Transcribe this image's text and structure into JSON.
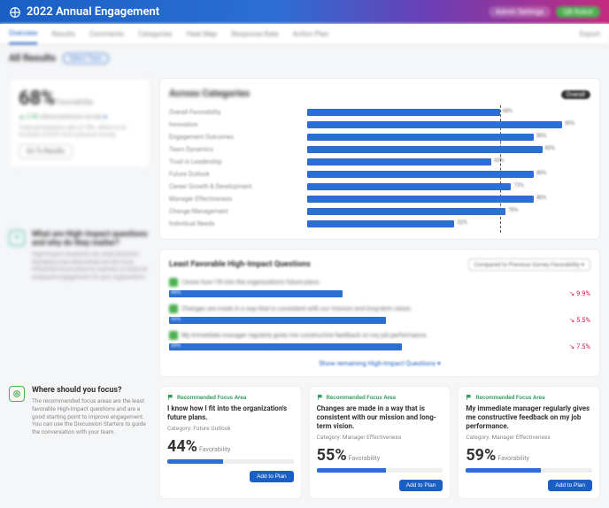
{
  "header": {
    "title": "2022 Annual Engagement",
    "badges": [
      "Admin Settings",
      "QB Robot"
    ]
  },
  "tabs": {
    "items": [
      "Overview",
      "Results",
      "Comments",
      "Categories",
      "Heat Map",
      "Response Rate",
      "Action Plan"
    ],
    "export": "Export"
  },
  "all_results": {
    "title": "All Results",
    "select_label": "Select Team",
    "favorability_pct": "68%",
    "favorability_label": "Favorability",
    "delta_prefix": "▲ 2.4%",
    "delta_text": "above previous survey",
    "note": "Total participation rate of 78%, which is an increase of 8.8% from previous survey.",
    "go_btn": "Go To Results"
  },
  "categories": {
    "title": "Across Categories",
    "overall_label": "Overall",
    "ref_line_pct": 68,
    "items": [
      {
        "label": "Overall Favorability",
        "pct": 68
      },
      {
        "label": "Innovation",
        "pct": 90
      },
      {
        "label": "Engagement Outcomes",
        "pct": 80
      },
      {
        "label": "Team Dynamics",
        "pct": 83
      },
      {
        "label": "Trust in Leadership",
        "pct": 65
      },
      {
        "label": "Future Outlook",
        "pct": 80
      },
      {
        "label": "Career Growth & Development",
        "pct": 72
      },
      {
        "label": "Manager Effectiveness",
        "pct": 80
      },
      {
        "label": "Change Management",
        "pct": 70
      },
      {
        "label": "Individual Needs",
        "pct": 52
      }
    ],
    "bar_color": "#2b6fd4"
  },
  "high_impact_info": {
    "title": "What are High-Impact questions and why do they matter?",
    "body": "High-Impact Questions are what Quantum Workplace has determined are the most influential focus areas to maintain or improve employee engagement for your organization."
  },
  "least_fav": {
    "title": "Least Favorable High-Impact Questions",
    "compare": "Compared to Previous Survey Favorability ▾",
    "items": [
      {
        "q": "I know how I fit into the organization's future plans.",
        "pct": 44,
        "delta": "↘ 9.9%"
      },
      {
        "q": "Changes are made in a way that is consistent with our mission and long-term vision.",
        "pct": 55,
        "delta": "↘ 5.5%"
      },
      {
        "q": "My immediate manager regularly gives me constructive feedback on my job performance.",
        "pct": 59,
        "delta": "↘ 7.5%"
      }
    ],
    "show_more": "Show remaining High-Impact Questions ▾"
  },
  "focus_info": {
    "title": "Where should you focus?",
    "body": "The recommended focus areas are the least favorable High-Impact questions and are a good starting point to improve engagement. You can use the Discussion Starters to guide the conversation with your team."
  },
  "focus_cards": {
    "rec_label": "Recommended Focus Area",
    "fav_label": "Favorability",
    "add_label": "Add to Plan",
    "cat_prefix": "Category: ",
    "items": [
      {
        "q": "I know how I fit into the organization's future plans.",
        "cat": "Future Outlook",
        "pct": "44%",
        "bar": 44
      },
      {
        "q": "Changes are made in a way that is consistent with our mission and long-term vision.",
        "cat": "Manager Effectiveness",
        "pct": "55%",
        "bar": 55
      },
      {
        "q": "My immediate manager regularly gives me constructive feedback on my job performance.",
        "cat": "Manager Effectiveness",
        "pct": "59%",
        "bar": 59
      }
    ]
  }
}
